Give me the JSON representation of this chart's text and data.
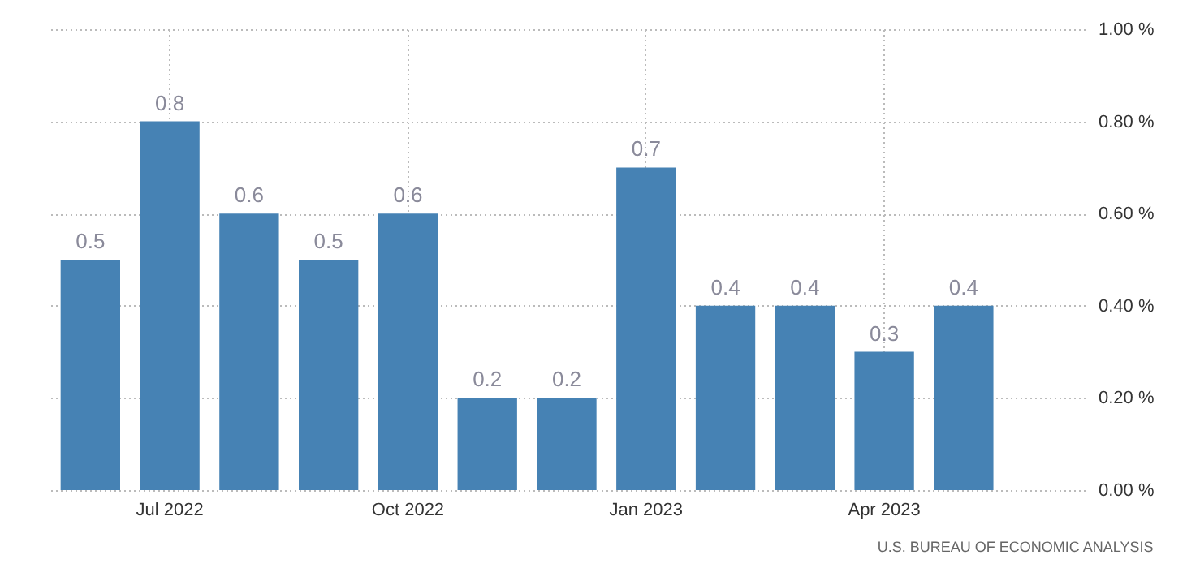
{
  "chart_data": {
    "type": "bar",
    "categories": [
      null,
      "Jul 2022",
      null,
      null,
      "Oct 2022",
      null,
      null,
      "Jan 2023",
      null,
      null,
      "Apr 2023",
      null,
      null
    ],
    "values": [
      0.5,
      0.8,
      0.6,
      0.5,
      0.6,
      0.2,
      0.2,
      0.7,
      0.4,
      0.4,
      0.3,
      0.4,
      null
    ],
    "color": "#4682b4",
    "ylim": [
      0,
      1
    ],
    "yticks": [
      {
        "value": 0,
        "label": "0.00 %"
      },
      {
        "value": 0.2,
        "label": "0.20 %"
      },
      {
        "value": 0.4,
        "label": "0.40 %"
      },
      {
        "value": 0.6,
        "label": "0.60 %"
      },
      {
        "value": 0.8,
        "label": "0.80 %"
      },
      {
        "value": 1,
        "label": "1.00 %"
      }
    ],
    "grid": true,
    "data_labels": true,
    "annotations": [
      "U.S. BUREAU OF ECONOMIC ANALYSIS"
    ]
  }
}
